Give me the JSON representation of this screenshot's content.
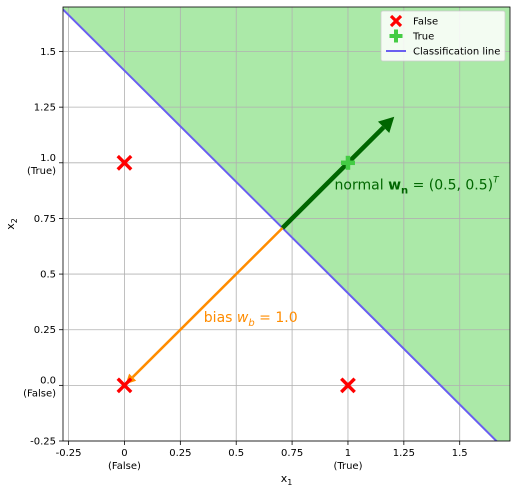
{
  "chart_data": {
    "type": "scatter",
    "xlabel_main": "x",
    "xlabel_sub": "1",
    "ylabel_main": "x",
    "ylabel_sub": "2",
    "xlim": [
      -0.275,
      1.725
    ],
    "ylim": [
      -0.25,
      1.7
    ],
    "xticks": [
      {
        "value": -0.25,
        "label": "-0.25",
        "sub": ""
      },
      {
        "value": 0.0,
        "label": "0",
        "sub": "(False)"
      },
      {
        "value": 0.25,
        "label": "0.25",
        "sub": ""
      },
      {
        "value": 0.5,
        "label": "0.5",
        "sub": ""
      },
      {
        "value": 0.75,
        "label": "0.75",
        "sub": ""
      },
      {
        "value": 1.0,
        "label": "1",
        "sub": "(True)"
      },
      {
        "value": 1.25,
        "label": "1.25",
        "sub": ""
      },
      {
        "value": 1.5,
        "label": "1.5",
        "sub": ""
      }
    ],
    "yticks": [
      {
        "value": -0.25,
        "label": "-0.25",
        "sub": ""
      },
      {
        "value": 0.0,
        "label": "0.0",
        "sub": "(False)"
      },
      {
        "value": 0.25,
        "label": "0.25",
        "sub": ""
      },
      {
        "value": 0.5,
        "label": "0.5",
        "sub": ""
      },
      {
        "value": 0.75,
        "label": "0.75",
        "sub": ""
      },
      {
        "value": 1.0,
        "label": "1.0",
        "sub": "(True)"
      },
      {
        "value": 1.25,
        "label": "1.25",
        "sub": ""
      },
      {
        "value": 1.5,
        "label": "1.5",
        "sub": ""
      }
    ],
    "grid": true,
    "classification_line": {
      "x_plus_y": 1.4142,
      "color": "#6a5ff0"
    },
    "true_region_color": "#abe9a8",
    "false_points": [
      [
        0,
        1
      ],
      [
        0,
        0
      ],
      [
        1,
        0
      ]
    ],
    "true_points": [
      [
        1,
        1
      ]
    ],
    "false_color": "#ff0000",
    "true_color": "#44cc44",
    "normal_vector": {
      "from": [
        0.7071,
        0.7071
      ],
      "to": [
        1.2071,
        1.2071
      ],
      "color": "#006600",
      "label_prefix": "normal ",
      "label_math": "w",
      "label_math_sub": "n",
      "label_suffix": " = (0.5, 0.5)",
      "label_sup": "T"
    },
    "bias_vector": {
      "from": [
        0.7071,
        0.7071
      ],
      "to": [
        0,
        0
      ],
      "color": "#ff8c00",
      "label_prefix": "bias ",
      "label_math": "w",
      "label_math_sub": "b",
      "label_suffix": " = 1.0"
    },
    "legend": {
      "placement": "top-right",
      "entries": [
        {
          "label": "False",
          "kind": "x-marker",
          "color": "#ff0000"
        },
        {
          "label": "True",
          "kind": "plus-marker",
          "color": "#44cc44"
        },
        {
          "label": "Classification line",
          "kind": "line",
          "color": "#6a5ff0"
        }
      ]
    }
  }
}
